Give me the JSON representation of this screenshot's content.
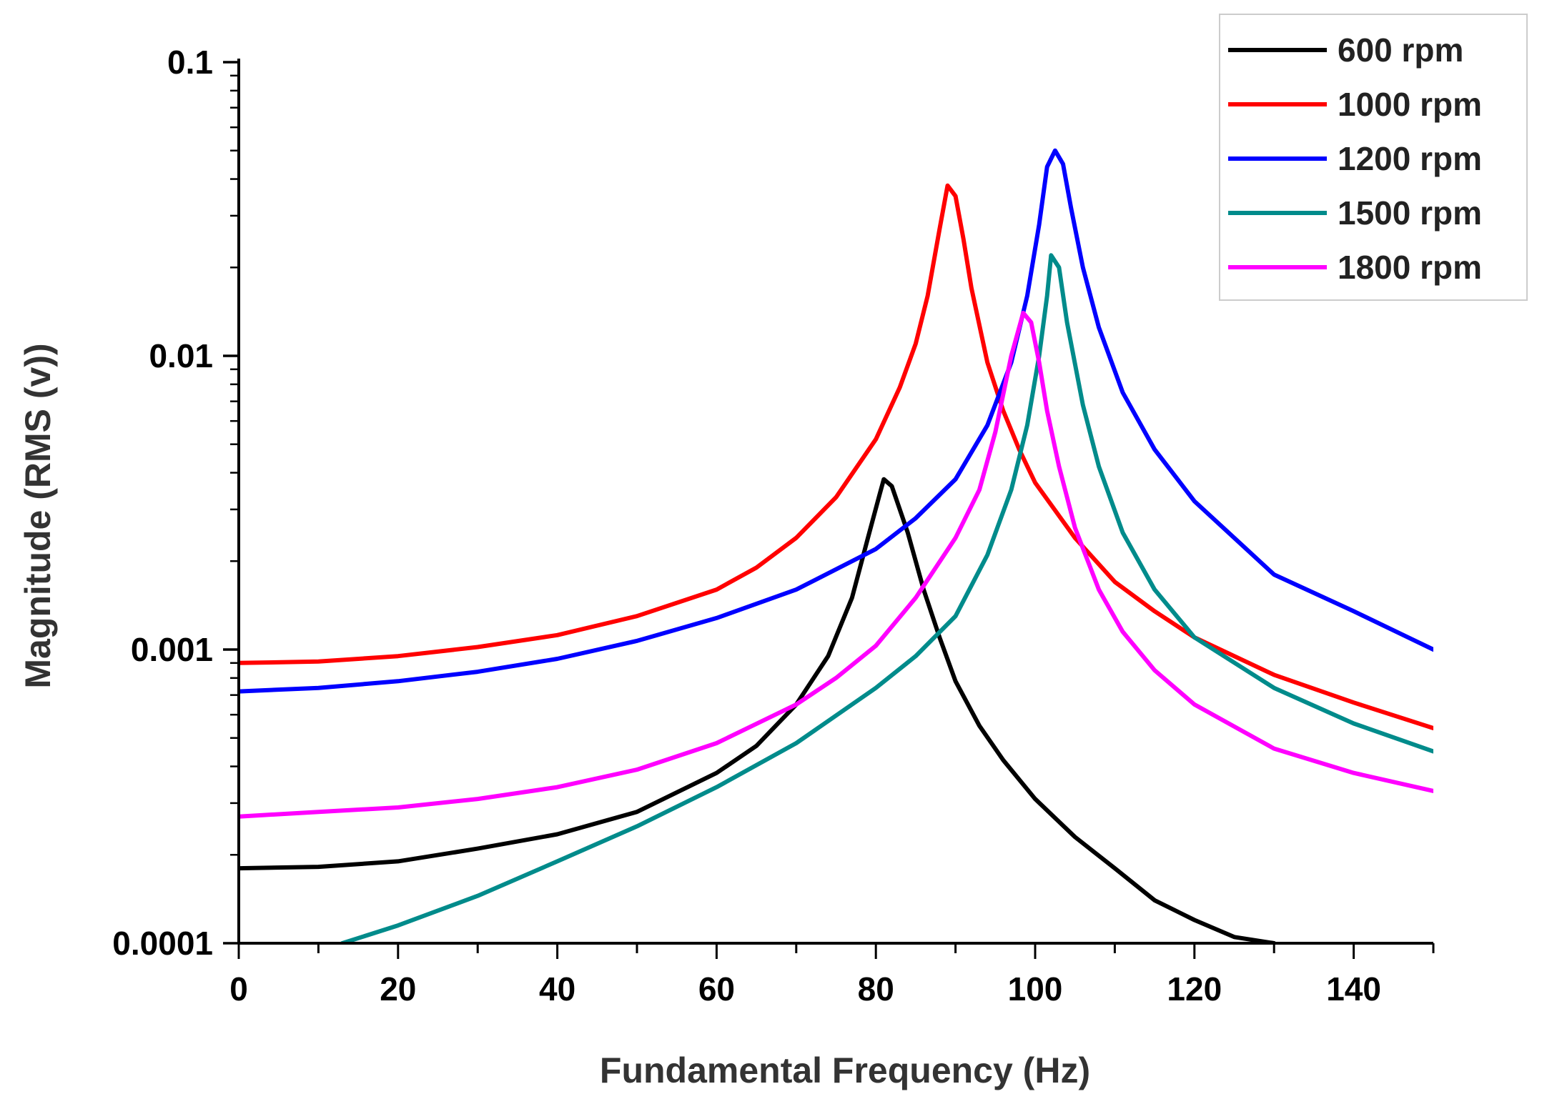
{
  "chart_data": {
    "type": "line",
    "title": "",
    "xlabel": "Fundamental Frequency (Hz)",
    "ylabel": "Magnitude (RMS (v))",
    "xlim": [
      0,
      150
    ],
    "ylim": [
      0.0001,
      0.1
    ],
    "yscale": "log",
    "x_ticks": [
      0,
      20,
      40,
      60,
      80,
      100,
      120,
      140
    ],
    "x_tick_labels": [
      "0",
      "20",
      "40",
      "60",
      "80",
      "100",
      "120",
      "140"
    ],
    "y_ticks": [
      0.0001,
      0.001,
      0.01,
      0.1
    ],
    "y_tick_labels": [
      "0.0001",
      "0.001",
      "0.01",
      "0.1"
    ],
    "grid": false,
    "legend_position": "top-right",
    "series": [
      {
        "name": "600 rpm",
        "color": "#000000",
        "x": [
          0,
          10,
          20,
          30,
          40,
          50,
          60,
          65,
          70,
          74,
          77,
          79,
          80.5,
          81,
          82,
          84,
          86,
          88,
          90,
          93,
          96,
          100,
          105,
          110,
          115,
          120,
          125,
          130
        ],
        "y": [
          0.00018,
          0.000182,
          0.00019,
          0.00021,
          0.000235,
          0.00028,
          0.00038,
          0.00047,
          0.00065,
          0.00095,
          0.0015,
          0.0024,
          0.0034,
          0.0038,
          0.0036,
          0.0025,
          0.0016,
          0.0011,
          0.00078,
          0.00055,
          0.00042,
          0.00031,
          0.00023,
          0.00018,
          0.00014,
          0.00012,
          0.000105,
          0.0001
        ]
      },
      {
        "name": "1000 rpm",
        "color": "#ff0000",
        "x": [
          0,
          10,
          20,
          30,
          40,
          50,
          60,
          65,
          70,
          75,
          80,
          83,
          85,
          86.5,
          88,
          89,
          90,
          91,
          92,
          94,
          96,
          98,
          100,
          105,
          110,
          115,
          120,
          130,
          140,
          150
        ],
        "y": [
          0.0009,
          0.00091,
          0.00095,
          0.00102,
          0.00112,
          0.0013,
          0.0016,
          0.0019,
          0.0024,
          0.0033,
          0.0052,
          0.0078,
          0.011,
          0.016,
          0.027,
          0.038,
          0.035,
          0.025,
          0.017,
          0.0095,
          0.0065,
          0.0048,
          0.0037,
          0.0024,
          0.0017,
          0.00135,
          0.0011,
          0.00082,
          0.00066,
          0.00054
        ]
      },
      {
        "name": "1200 rpm",
        "color": "#0000ff",
        "x": [
          0,
          10,
          20,
          30,
          40,
          50,
          60,
          70,
          80,
          85,
          90,
          94,
          97,
          99,
          100.5,
          101.5,
          102.5,
          103.5,
          104.5,
          106,
          108,
          111,
          115,
          120,
          130,
          140,
          150
        ],
        "y": [
          0.00072,
          0.00074,
          0.00078,
          0.00084,
          0.00093,
          0.00107,
          0.00128,
          0.0016,
          0.0022,
          0.0028,
          0.0038,
          0.0058,
          0.0095,
          0.016,
          0.028,
          0.044,
          0.05,
          0.045,
          0.032,
          0.02,
          0.0125,
          0.0075,
          0.0048,
          0.0032,
          0.0018,
          0.00135,
          0.001
        ]
      },
      {
        "name": "1500 rpm",
        "color": "#008b8b",
        "x": [
          13,
          20,
          30,
          40,
          50,
          60,
          70,
          80,
          85,
          90,
          94,
          97,
          99,
          100.5,
          101.5,
          102,
          103,
          104,
          106,
          108,
          111,
          115,
          120,
          130,
          140,
          150
        ],
        "y": [
          0.0001,
          0.000115,
          0.000145,
          0.00019,
          0.00025,
          0.00034,
          0.00048,
          0.00074,
          0.00095,
          0.0013,
          0.0021,
          0.0035,
          0.0058,
          0.01,
          0.016,
          0.022,
          0.02,
          0.013,
          0.0068,
          0.0042,
          0.0025,
          0.0016,
          0.0011,
          0.00074,
          0.00056,
          0.00045
        ]
      },
      {
        "name": "1800 rpm",
        "color": "#ff00ff",
        "x": [
          0,
          10,
          20,
          30,
          40,
          50,
          60,
          70,
          75,
          80,
          85,
          90,
          93,
          95,
          97,
          98.5,
          99.5,
          100.5,
          101.5,
          103,
          105,
          108,
          111,
          115,
          120,
          130,
          140,
          150
        ],
        "y": [
          0.00027,
          0.00028,
          0.00029,
          0.00031,
          0.00034,
          0.00039,
          0.00048,
          0.00065,
          0.0008,
          0.00103,
          0.0015,
          0.0024,
          0.0035,
          0.0055,
          0.01,
          0.014,
          0.013,
          0.0095,
          0.0065,
          0.0042,
          0.0026,
          0.0016,
          0.00115,
          0.00085,
          0.00065,
          0.00046,
          0.00038,
          0.00033
        ]
      }
    ]
  }
}
